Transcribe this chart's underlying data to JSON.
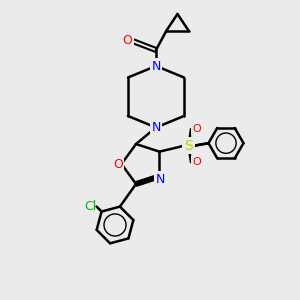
{
  "bg_color": "#ebebeb",
  "bond_color": "#000000",
  "bond_width": 1.8,
  "atom_colors": {
    "N": "#0000ff",
    "O": "#ff0000",
    "S": "#cccc00",
    "Cl": "#00bb00",
    "C": "#000000"
  },
  "font_size": 8,
  "title": ""
}
